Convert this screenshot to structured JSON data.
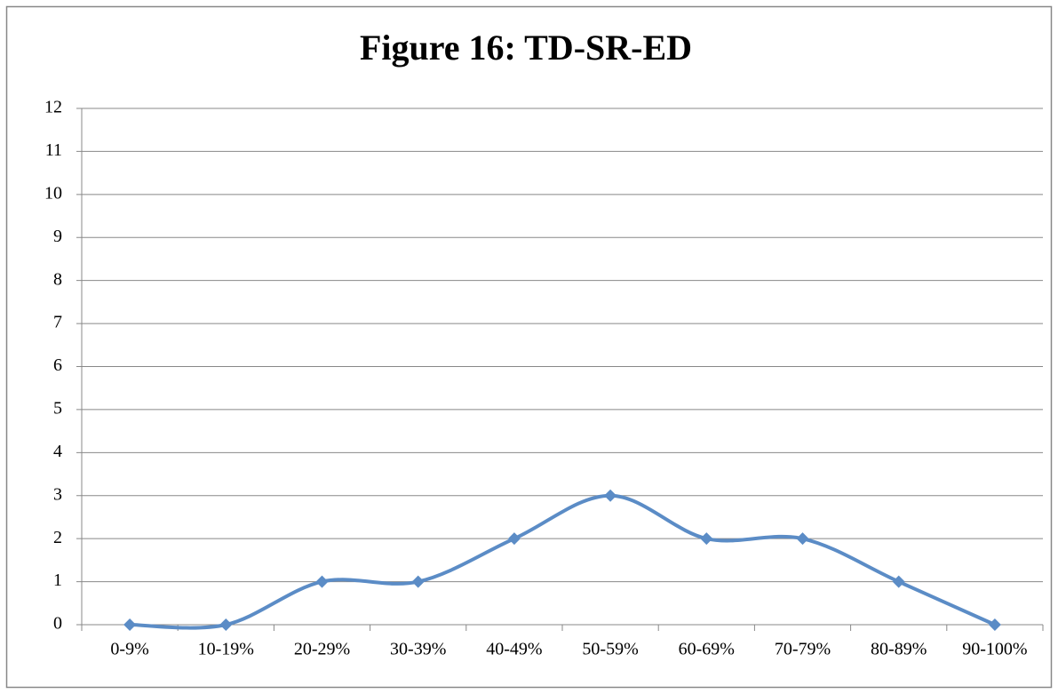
{
  "chart_data": {
    "type": "line",
    "title": "Figure 16: TD-SR-ED",
    "categories": [
      "0-9%",
      "10-19%",
      "20-29%",
      "30-39%",
      "40-49%",
      "50-59%",
      "60-69%",
      "70-79%",
      "80-89%",
      "90-100%"
    ],
    "values": [
      0,
      0,
      1,
      1,
      2,
      3,
      2,
      2,
      1,
      0
    ],
    "color": "#5b8cc6",
    "smooth": true,
    "ylim": [
      0,
      12
    ],
    "yticks": [
      0,
      1,
      2,
      3,
      4,
      5,
      6,
      7,
      8,
      9,
      10,
      11,
      12
    ],
    "grid": true
  }
}
